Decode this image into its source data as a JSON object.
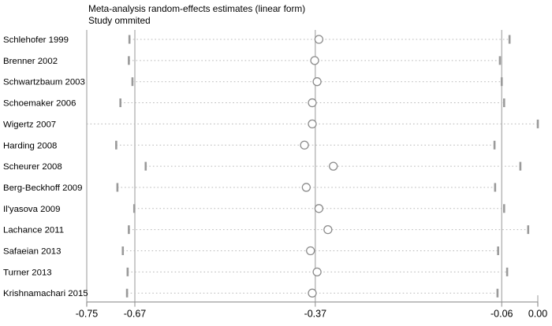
{
  "chart": {
    "title": "Meta-analysis random-effects estimates (linear form)",
    "subtitle": "Study ommited"
  },
  "chart_data": {
    "type": "forest",
    "title": "Meta-analysis random-effects estimates (linear form)",
    "subtitle": "Study ommited",
    "xlabel": "",
    "ylabel": "",
    "xlim": [
      -0.75,
      0.0
    ],
    "x_ticks": [
      -0.75,
      -0.67,
      -0.37,
      -0.06,
      0.0
    ],
    "x_tick_labels": [
      "-0.75",
      "-0.67",
      "-0.37",
      "-0.06",
      "0.00"
    ],
    "reference_lines": [
      -0.67,
      -0.37,
      -0.06
    ],
    "legend": null,
    "grid": false,
    "studies": [
      {
        "label": "Schlehofer 1999",
        "estimate": -0.364,
        "lower": -0.679,
        "upper": -0.047,
        "lower_clipped": false
      },
      {
        "label": "Brenner 2002",
        "estimate": -0.371,
        "lower": -0.68,
        "upper": -0.063,
        "lower_clipped": false
      },
      {
        "label": "Schwartzbaum 2003",
        "estimate": -0.367,
        "lower": -0.674,
        "upper": -0.06,
        "lower_clipped": false
      },
      {
        "label": "Schoemaker 2006",
        "estimate": -0.375,
        "lower": -0.694,
        "upper": -0.056,
        "lower_clipped": false
      },
      {
        "label": "Wigertz 2007",
        "estimate": -0.375,
        "lower": -0.75,
        "upper": 0.0,
        "lower_clipped": true
      },
      {
        "label": "Harding 2008",
        "estimate": -0.388,
        "lower": -0.701,
        "upper": -0.072,
        "lower_clipped": false
      },
      {
        "label": "Scheurer 2008",
        "estimate": -0.34,
        "lower": -0.652,
        "upper": -0.029,
        "lower_clipped": false
      },
      {
        "label": "Berg-Beckhoff 2009",
        "estimate": -0.385,
        "lower": -0.699,
        "upper": -0.071,
        "lower_clipped": false
      },
      {
        "label": "Il'yasova 2009",
        "estimate": -0.364,
        "lower": -0.671,
        "upper": -0.056,
        "lower_clipped": false
      },
      {
        "label": "Lachance 2011",
        "estimate": -0.349,
        "lower": -0.68,
        "upper": -0.016,
        "lower_clipped": false
      },
      {
        "label": "Safaeian 2013",
        "estimate": -0.378,
        "lower": -0.69,
        "upper": -0.066,
        "lower_clipped": false
      },
      {
        "label": "Turner 2013",
        "estimate": -0.367,
        "lower": -0.682,
        "upper": -0.051,
        "lower_clipped": false
      },
      {
        "label": "Krishnamachari 2015",
        "estimate": -0.375,
        "lower": -0.683,
        "upper": -0.067,
        "lower_clipped": false
      }
    ]
  },
  "colors": {
    "grid_line": "#a9a9a9",
    "axis_line": "#8c8c8c",
    "dash_line": "#b8b8b8",
    "ci_bar": "#9a9a9a",
    "marker_stroke": "#8c8c8c",
    "marker_fill": "#ffffff",
    "text": "#000000"
  }
}
